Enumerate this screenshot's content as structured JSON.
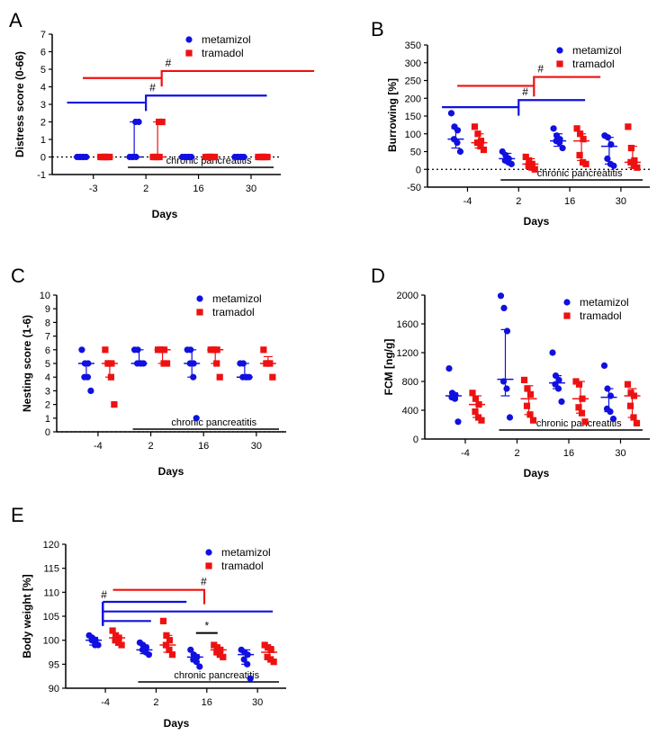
{
  "colors": {
    "metamizol": "#1010e0",
    "tramadol": "#ee1111",
    "axis": "#000000"
  },
  "chart_data": [
    {
      "type": "scatter",
      "panel_label": "A",
      "ylabel": "Distress score (0-66)",
      "xlabel": "Days",
      "categories": [
        "-3",
        "2",
        "16",
        "30"
      ],
      "ylim": [
        -1,
        7
      ],
      "yticks": [
        -1,
        0,
        1,
        2,
        3,
        4,
        5,
        6,
        7
      ],
      "zero_line": true,
      "annotation": "chronic pancreatitis",
      "annotation_start": 1,
      "legend": [
        "metamizol",
        "tramadol"
      ],
      "series": [
        {
          "name": "metamizol",
          "points": [
            [
              0,
              0,
              0,
              0,
              0,
              0
            ],
            [
              0,
              0,
              0,
              0,
              2,
              2
            ],
            [
              0,
              0,
              0,
              0,
              0,
              0
            ],
            [
              0,
              0,
              0,
              0,
              0,
              0
            ]
          ],
          "center": [
            0,
            0,
            0,
            0
          ],
          "err_low": [
            0,
            0,
            0,
            0
          ],
          "err_high": [
            0,
            2,
            0,
            0
          ]
        },
        {
          "name": "tramadol",
          "points": [
            [
              0,
              0,
              0,
              0,
              0,
              0
            ],
            [
              0,
              0,
              0,
              0,
              2,
              2
            ],
            [
              0,
              0,
              0,
              0,
              0,
              0
            ],
            [
              0,
              0,
              0,
              0,
              0,
              0
            ]
          ],
          "center": [
            0,
            0,
            0,
            0
          ],
          "err_low": [
            0,
            0,
            0,
            0
          ],
          "err_high": [
            0,
            2,
            0,
            0
          ]
        }
      ],
      "brackets": [
        {
          "color": "metamizol",
          "y": 3.1,
          "y2": 3.5,
          "from": -0.5,
          "pivot": 1,
          "to": 3.3,
          "label": "#"
        },
        {
          "color": "tramadol",
          "y": 4.5,
          "y2": 4.9,
          "from": -0.2,
          "pivot": 1.3,
          "to": 4.2,
          "label": "#"
        }
      ]
    },
    {
      "type": "scatter",
      "panel_label": "B",
      "ylabel": "Burrowing [%]",
      "xlabel": "Days",
      "categories": [
        "-4",
        "2",
        "16",
        "30"
      ],
      "ylim": [
        -50,
        350
      ],
      "yticks": [
        -50,
        0,
        50,
        100,
        150,
        200,
        250,
        300,
        350
      ],
      "zero_line": true,
      "annotation": "chronic pancreatitis",
      "annotation_start": 1,
      "legend": [
        "metamizol",
        "tramadol"
      ],
      "series": [
        {
          "name": "metamizol",
          "points": [
            [
              158,
              120,
              110,
              85,
              75,
              50
            ],
            [
              50,
              40,
              30,
              25,
              20,
              15
            ],
            [
              115,
              95,
              85,
              80,
              75,
              60
            ],
            [
              95,
              90,
              70,
              30,
              15,
              10
            ]
          ],
          "center": [
            85,
            30,
            80,
            65
          ],
          "err_low": [
            60,
            20,
            65,
            15
          ],
          "err_high": [
            115,
            45,
            100,
            90
          ]
        },
        {
          "name": "tramadol",
          "points": [
            [
              120,
              100,
              80,
              75,
              65,
              55
            ],
            [
              35,
              25,
              15,
              10,
              5,
              0
            ],
            [
              115,
              100,
              85,
              40,
              20,
              15
            ],
            [
              120,
              60,
              25,
              20,
              10,
              5
            ]
          ],
          "center": [
            75,
            15,
            80,
            20
          ],
          "err_low": [
            60,
            5,
            25,
            5
          ],
          "err_high": [
            100,
            30,
            100,
            65
          ]
        }
      ],
      "brackets": [
        {
          "color": "metamizol",
          "y": 175,
          "y2": 195,
          "from": -0.5,
          "pivot": 1,
          "to": 2.3,
          "label": "#"
        },
        {
          "color": "tramadol",
          "y": 235,
          "y2": 260,
          "from": -0.2,
          "pivot": 1.3,
          "to": 2.6,
          "label": "#"
        }
      ]
    },
    {
      "type": "scatter",
      "panel_label": "C",
      "ylabel": "Nesting score (1-6)",
      "xlabel": "Days",
      "categories": [
        "-4",
        "2",
        "16",
        "30"
      ],
      "ylim": [
        0,
        10
      ],
      "yticks": [
        0,
        1,
        2,
        3,
        4,
        5,
        6,
        7,
        8,
        9,
        10
      ],
      "zero_line": true,
      "annotation": "chronic pancreatitis",
      "annotation_start": 1,
      "legend": [
        "metamizol",
        "tramadol"
      ],
      "series": [
        {
          "name": "metamizol",
          "points": [
            [
              6,
              5,
              5,
              4,
              4,
              3
            ],
            [
              6,
              6,
              5,
              5,
              5,
              5
            ],
            [
              6,
              6,
              5,
              5,
              4,
              1
            ],
            [
              5,
              5,
              4,
              4,
              4,
              4
            ]
          ],
          "center": [
            5,
            5,
            5,
            4
          ],
          "err_low": [
            4,
            5,
            4,
            4
          ],
          "err_high": [
            5,
            6,
            6,
            5
          ]
        },
        {
          "name": "tramadol",
          "points": [
            [
              6,
              5,
              5,
              5,
              4,
              2
            ],
            [
              6,
              6,
              6,
              6,
              5,
              5
            ],
            [
              6,
              6,
              6,
              6,
              5,
              4
            ],
            [
              6,
              5,
              5,
              5,
              5,
              4
            ]
          ],
          "center": [
            5,
            6,
            6,
            5
          ],
          "err_low": [
            4,
            5,
            5,
            5
          ],
          "err_high": [
            5,
            6,
            6,
            5.5
          ]
        }
      ],
      "brackets": []
    },
    {
      "type": "scatter",
      "panel_label": "D",
      "ylabel": "FCM [ng/g]",
      "xlabel": "Days",
      "categories": [
        "-4",
        "2",
        "16",
        "30"
      ],
      "ylim": [
        0,
        2000
      ],
      "yticks": [
        0,
        400,
        800,
        1200,
        1600,
        2000
      ],
      "zero_line": false,
      "annotation": "chronic pancreatitis",
      "annotation_start": 1,
      "legend": [
        "metamizol",
        "tramadol"
      ],
      "series": [
        {
          "name": "metamizol",
          "points": [
            [
              980,
              640,
              610,
              580,
              560,
              240
            ],
            [
              1990,
              1820,
              1500,
              800,
              700,
              300
            ],
            [
              1200,
              880,
              820,
              760,
              700,
              520
            ],
            [
              1020,
              700,
              600,
              420,
              380,
              280
            ]
          ],
          "center": [
            600,
            830,
            780,
            580
          ],
          "err_low": [
            560,
            600,
            700,
            380
          ],
          "err_high": [
            640,
            1520,
            880,
            700
          ]
        },
        {
          "name": "tramadol",
          "points": [
            [
              640,
              560,
              480,
              380,
              300,
              260
            ],
            [
              820,
              700,
              620,
              460,
              340,
              260
            ],
            [
              800,
              760,
              560,
              440,
              360,
              240
            ],
            [
              760,
              640,
              600,
              460,
              300,
              220
            ]
          ],
          "center": [
            480,
            560,
            560,
            600
          ],
          "err_low": [
            300,
            340,
            360,
            300
          ],
          "err_high": [
            600,
            740,
            800,
            700
          ]
        }
      ],
      "brackets": []
    },
    {
      "type": "scatter",
      "panel_label": "E",
      "ylabel": "Body weight [%]",
      "xlabel": "Days",
      "categories": [
        "-4",
        "2",
        "16",
        "30"
      ],
      "ylim": [
        90,
        120
      ],
      "yticks": [
        90,
        95,
        100,
        105,
        110,
        115,
        120
      ],
      "zero_line": false,
      "annotation": "chronic pancreatitis",
      "annotation_start": 1,
      "legend": [
        "metamizol",
        "tramadol"
      ],
      "series": [
        {
          "name": "metamizol",
          "points": [
            [
              101,
              100.5,
              100,
              100,
              99,
              99
            ],
            [
              99.5,
              99,
              98.5,
              98,
              97.5,
              97
            ],
            [
              98,
              97,
              96.5,
              96,
              95.5,
              94.5
            ],
            [
              98,
              97.5,
              97,
              96,
              95,
              92
            ]
          ],
          "center": [
            100,
            98,
            96.5,
            97
          ],
          "err_low": [
            99,
            97.2,
            95.5,
            95
          ],
          "err_high": [
            100.6,
            99,
            97,
            98
          ]
        },
        {
          "name": "tramadol",
          "points": [
            [
              102,
              101,
              100.5,
              100,
              99.5,
              99
            ],
            [
              104,
              101,
              100,
              99,
              98,
              97
            ],
            [
              99,
              98.5,
              98,
              97.5,
              97,
              96.5
            ],
            [
              99,
              98.5,
              98,
              96.5,
              96,
              95.5
            ]
          ],
          "center": [
            100.5,
            99,
            98,
            97.5
          ],
          "err_low": [
            99.5,
            97.5,
            97.2,
            96
          ],
          "err_high": [
            101,
            101,
            98.5,
            98.7
          ]
        }
      ],
      "brackets": [
        {
          "color": "metamizol",
          "y": 104,
          "y2": 104,
          "from": -0.05,
          "pivot": -0.05,
          "to": 0.9,
          "label": ""
        },
        {
          "color": "metamizol",
          "y": 106,
          "y2": 106,
          "from": -0.05,
          "pivot": -0.05,
          "to": 3.3,
          "label": ""
        },
        {
          "color": "metamizol",
          "y": 108,
          "y2": 108,
          "from": -0.05,
          "pivot": -0.05,
          "to": 1.6,
          "label": "#"
        },
        {
          "color": "tramadol",
          "y": 110.5,
          "y2": 110.5,
          "from": 0.15,
          "pivot": 1.95,
          "to": 1.95,
          "label": "#",
          "drop_to": 107.5
        }
      ],
      "comparisons": [
        {
          "category": 2,
          "y": 101.5,
          "label": "*"
        }
      ]
    }
  ]
}
